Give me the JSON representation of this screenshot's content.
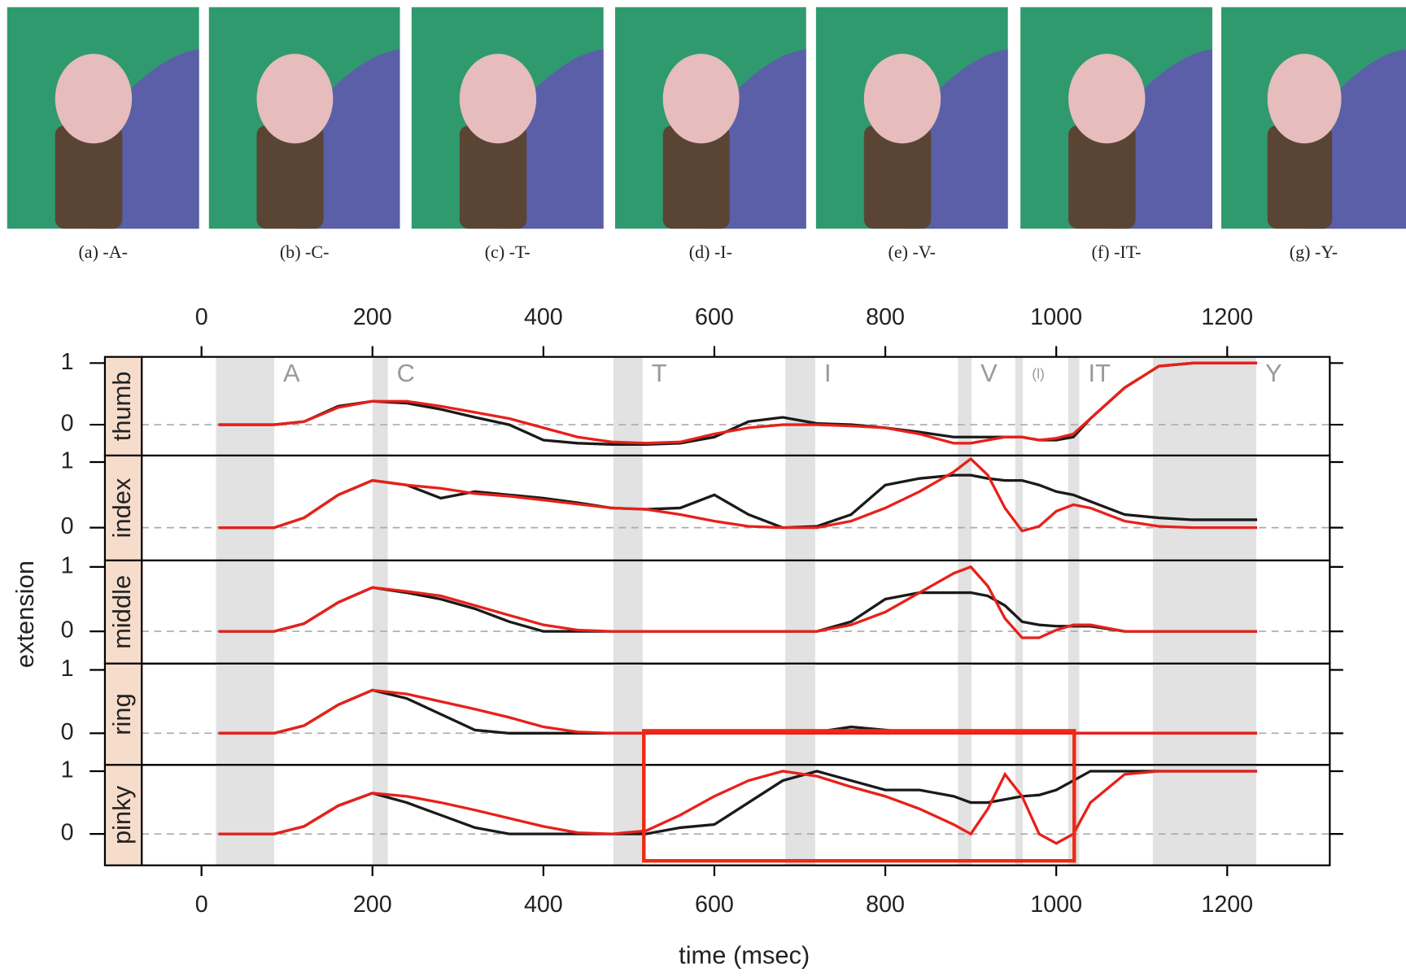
{
  "figure": {
    "captions": [
      "(a) -A-",
      "(b) -C-",
      "(c) -T-",
      "(d) -I-",
      "(e) -V-",
      "(f) -IT-",
      "(g) -Y-"
    ],
    "xlabel": "time (msec)",
    "ylabel": "extension",
    "segments": [
      {
        "label": "A",
        "start": 17,
        "end": 85
      },
      {
        "label": "C",
        "start": 200,
        "end": 218
      },
      {
        "label": "T",
        "start": 482,
        "end": 516
      },
      {
        "label": "I",
        "start": 683,
        "end": 718
      },
      {
        "label": "V",
        "start": 885,
        "end": 901
      },
      {
        "label": "(l)",
        "start": 952,
        "end": 961
      },
      {
        "label": "IT",
        "start": 1014,
        "end": 1027
      },
      {
        "label": "Y",
        "start": 1113,
        "end": 1234
      }
    ]
  },
  "chart_data": [
    {
      "type": "line",
      "title": "thumb",
      "xlim": [
        -70,
        1320
      ],
      "xticks": [
        0,
        200,
        400,
        600,
        800,
        1000,
        1200
      ],
      "ylim": [
        -0.5,
        1.1
      ],
      "yticks": [
        0,
        1
      ],
      "x": [
        20,
        85,
        120,
        160,
        200,
        240,
        280,
        320,
        360,
        400,
        440,
        480,
        520,
        560,
        600,
        640,
        680,
        720,
        760,
        800,
        840,
        880,
        900,
        920,
        940,
        960,
        980,
        1000,
        1020,
        1040,
        1080,
        1120,
        1160,
        1200,
        1235
      ],
      "series": [
        {
          "color": "#1a1a1a",
          "values": [
            0,
            0,
            0.05,
            0.3,
            0.38,
            0.35,
            0.25,
            0.12,
            0,
            -0.25,
            -0.3,
            -0.32,
            -0.32,
            -0.3,
            -0.2,
            0.05,
            0.12,
            0.02,
            0,
            -0.05,
            -0.12,
            -0.2,
            -0.2,
            -0.2,
            -0.2,
            -0.2,
            -0.25,
            -0.25,
            -0.2,
            0.1,
            0.6,
            0.95,
            1,
            1,
            1
          ]
        },
        {
          "color": "#e8201a",
          "values": [
            0,
            0,
            0.05,
            0.28,
            0.38,
            0.38,
            0.3,
            0.2,
            0.1,
            -0.05,
            -0.2,
            -0.28,
            -0.3,
            -0.28,
            -0.15,
            -0.05,
            0,
            0,
            -0.02,
            -0.05,
            -0.15,
            -0.3,
            -0.3,
            -0.25,
            -0.2,
            -0.2,
            -0.25,
            -0.22,
            -0.15,
            0.1,
            0.6,
            0.95,
            1,
            1,
            1
          ]
        }
      ]
    },
    {
      "type": "line",
      "title": "index",
      "xlim": [
        -70,
        1320
      ],
      "ylim": [
        -0.5,
        1.1
      ],
      "yticks": [
        0,
        1
      ],
      "x": [
        20,
        85,
        120,
        160,
        200,
        240,
        280,
        320,
        360,
        400,
        440,
        480,
        520,
        560,
        600,
        640,
        680,
        720,
        760,
        800,
        840,
        880,
        900,
        920,
        940,
        960,
        980,
        1000,
        1020,
        1040,
        1080,
        1120,
        1160,
        1200,
        1235
      ],
      "series": [
        {
          "color": "#1a1a1a",
          "values": [
            0,
            0,
            0.15,
            0.5,
            0.72,
            0.65,
            0.45,
            0.55,
            0.5,
            0.45,
            0.38,
            0.3,
            0.28,
            0.3,
            0.5,
            0.2,
            0,
            0.02,
            0.2,
            0.65,
            0.75,
            0.8,
            0.8,
            0.75,
            0.72,
            0.72,
            0.65,
            0.55,
            0.5,
            0.4,
            0.2,
            0.15,
            0.12,
            0.12,
            0.12
          ]
        },
        {
          "color": "#e8201a",
          "values": [
            0,
            0,
            0.15,
            0.5,
            0.72,
            0.65,
            0.6,
            0.52,
            0.48,
            0.42,
            0.36,
            0.3,
            0.28,
            0.2,
            0.1,
            0.02,
            0,
            0,
            0.1,
            0.3,
            0.55,
            0.85,
            1.05,
            0.8,
            0.3,
            -0.05,
            0.02,
            0.25,
            0.35,
            0.3,
            0.1,
            0.02,
            0,
            0,
            0
          ]
        }
      ]
    },
    {
      "type": "line",
      "title": "middle",
      "xlim": [
        -70,
        1320
      ],
      "ylim": [
        -0.5,
        1.1
      ],
      "yticks": [
        0,
        1
      ],
      "x": [
        20,
        85,
        120,
        160,
        200,
        240,
        280,
        320,
        360,
        400,
        440,
        480,
        520,
        560,
        600,
        640,
        680,
        720,
        760,
        800,
        840,
        880,
        900,
        920,
        940,
        960,
        980,
        1000,
        1020,
        1040,
        1080,
        1120,
        1160,
        1200,
        1235
      ],
      "series": [
        {
          "color": "#1a1a1a",
          "values": [
            0,
            0,
            0.12,
            0.45,
            0.68,
            0.6,
            0.5,
            0.35,
            0.15,
            0,
            0,
            0,
            0,
            0,
            0,
            0,
            0,
            0,
            0.15,
            0.5,
            0.6,
            0.6,
            0.6,
            0.55,
            0.4,
            0.15,
            0.1,
            0.08,
            0.08,
            0.08,
            0,
            0,
            0,
            0,
            0
          ]
        },
        {
          "color": "#e8201a",
          "values": [
            0,
            0,
            0.12,
            0.45,
            0.68,
            0.62,
            0.55,
            0.4,
            0.25,
            0.1,
            0.02,
            0,
            0,
            0,
            0,
            0,
            0,
            0,
            0.1,
            0.3,
            0.6,
            0.9,
            1,
            0.7,
            0.2,
            -0.1,
            -0.1,
            0.02,
            0.1,
            0.1,
            0,
            0,
            0,
            0,
            0
          ]
        }
      ]
    },
    {
      "type": "line",
      "title": "ring",
      "xlim": [
        -70,
        1320
      ],
      "ylim": [
        -0.5,
        1.1
      ],
      "yticks": [
        0,
        1
      ],
      "x": [
        20,
        85,
        120,
        160,
        200,
        240,
        280,
        320,
        360,
        400,
        440,
        480,
        520,
        560,
        600,
        640,
        680,
        720,
        760,
        800,
        840,
        880,
        900,
        920,
        940,
        960,
        980,
        1000,
        1020,
        1040,
        1080,
        1120,
        1160,
        1200,
        1235
      ],
      "series": [
        {
          "color": "#1a1a1a",
          "values": [
            0,
            0,
            0.12,
            0.45,
            0.68,
            0.55,
            0.3,
            0.05,
            0,
            0,
            0,
            0,
            0,
            0,
            0,
            0,
            0,
            0.02,
            0.1,
            0.05,
            0,
            0,
            0,
            0,
            0,
            0,
            0,
            0,
            0,
            0,
            0,
            0,
            0,
            0,
            0
          ]
        },
        {
          "color": "#e8201a",
          "values": [
            0,
            0,
            0.12,
            0.45,
            0.68,
            0.62,
            0.5,
            0.38,
            0.25,
            0.1,
            0.02,
            0,
            0,
            0,
            0,
            0,
            0,
            0,
            0,
            0,
            0,
            0,
            0,
            0,
            0,
            0,
            0,
            0,
            0,
            0,
            0,
            0,
            0,
            0,
            0
          ]
        }
      ]
    },
    {
      "type": "line",
      "title": "pinky",
      "xlim": [
        -70,
        1320
      ],
      "xticks": [
        0,
        200,
        400,
        600,
        800,
        1000,
        1200
      ],
      "ylim": [
        -0.5,
        1.1
      ],
      "yticks": [
        0,
        1
      ],
      "x": [
        20,
        85,
        120,
        160,
        200,
        240,
        280,
        320,
        360,
        400,
        440,
        480,
        520,
        560,
        600,
        640,
        680,
        720,
        760,
        800,
        840,
        880,
        900,
        920,
        940,
        960,
        980,
        1000,
        1020,
        1040,
        1080,
        1120,
        1160,
        1200,
        1235
      ],
      "series": [
        {
          "color": "#1a1a1a",
          "values": [
            0,
            0,
            0.12,
            0.45,
            0.65,
            0.5,
            0.3,
            0.1,
            0,
            0,
            0,
            0,
            0,
            0.1,
            0.15,
            0.5,
            0.85,
            1,
            0.85,
            0.7,
            0.7,
            0.6,
            0.5,
            0.5,
            0.55,
            0.6,
            0.62,
            0.7,
            0.85,
            1,
            1,
            1,
            1,
            1,
            1
          ]
        },
        {
          "color": "#e8201a",
          "values": [
            0,
            0,
            0.12,
            0.45,
            0.65,
            0.6,
            0.5,
            0.38,
            0.25,
            0.12,
            0.02,
            0,
            0.05,
            0.3,
            0.6,
            0.85,
            1,
            0.92,
            0.75,
            0.6,
            0.4,
            0.15,
            0,
            0.4,
            0.95,
            0.6,
            0,
            -0.15,
            0,
            0.5,
            0.95,
            1,
            1,
            1,
            1
          ]
        }
      ]
    }
  ]
}
